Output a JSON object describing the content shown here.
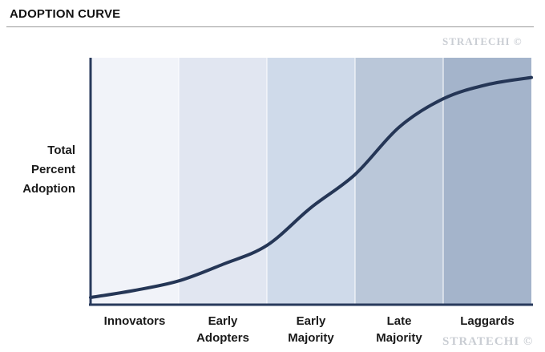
{
  "title": "ADOPTION CURVE",
  "y_axis_label": "Total\nPercent\nAdoption",
  "watermark": "STRATECHI ©",
  "colors": {
    "curve": "#253656",
    "axis": "#283a5c",
    "bands": [
      "#f1f3f9",
      "#e1e6f1",
      "#cfdaea",
      "#bac7d9",
      "#a4b4cb"
    ]
  },
  "chart_data": {
    "type": "line",
    "categories": [
      "Innovators",
      "Early\nAdopters",
      "Early\nMajority",
      "Late\nMajority",
      "Laggards"
    ],
    "xlabel": "",
    "ylabel": "Total\nPercent\nAdoption",
    "ylim": [
      0,
      100
    ],
    "series": [
      {
        "x": [
          0,
          0.5,
          1.0,
          1.5,
          2.0,
          2.5,
          3.0,
          3.5,
          4.0,
          4.5,
          5.0
        ],
        "values": [
          0,
          3,
          7,
          14,
          22,
          38,
          52,
          72,
          84,
          90,
          93
        ]
      }
    ]
  }
}
